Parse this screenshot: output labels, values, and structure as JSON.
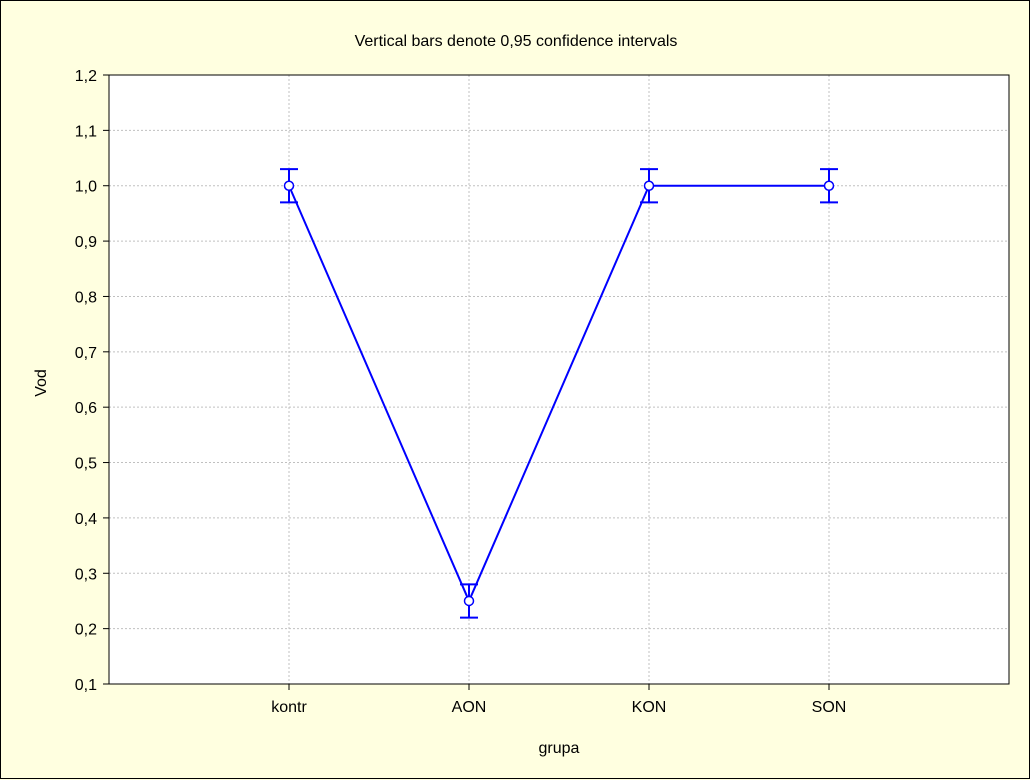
{
  "chart_data": {
    "type": "line",
    "title": "Vertical bars denote 0,95 confidence intervals",
    "xlabel": "grupa",
    "ylabel": "Vod",
    "categories": [
      "kontr",
      "AON",
      "KON",
      "SON"
    ],
    "series": [
      {
        "values": [
          1.0,
          0.25,
          1.0,
          1.0
        ],
        "ci_lower": [
          0.97,
          0.22,
          0.97,
          0.97
        ],
        "ci_upper": [
          1.03,
          0.28,
          1.03,
          1.03
        ],
        "color": "#0000FF"
      }
    ],
    "ylim": [
      0.1,
      1.2
    ],
    "yticks": [
      "0,1",
      "0,2",
      "0,3",
      "0,4",
      "0,5",
      "0,6",
      "0,7",
      "0,8",
      "0,9",
      "1,0",
      "1,1",
      "1,2"
    ],
    "grid": true,
    "legend": "none",
    "colors": {
      "background": "#FFFFE0",
      "plot_background": "#FFFFFF",
      "grid": "#C0C0C0",
      "series": "#0000FF",
      "marker_fill": "#FFFFFF"
    }
  }
}
